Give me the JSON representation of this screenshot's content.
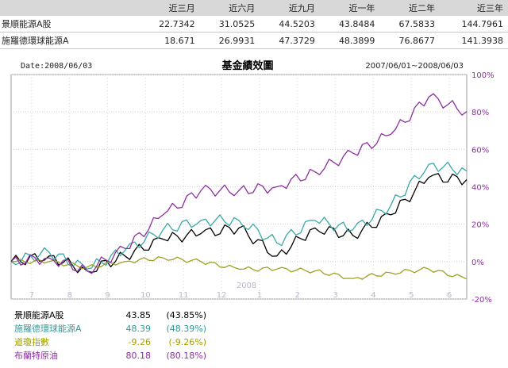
{
  "table": {
    "headers": [
      "",
      "近三月",
      "近六月",
      "近九月",
      "近一年",
      "近二年",
      "近三年"
    ],
    "rows": [
      {
        "name": "景順能源A股",
        "values": [
          "22.7342",
          "31.0525",
          "44.5203",
          "43.8484",
          "67.5833",
          "144.7961"
        ]
      },
      {
        "name": "施羅德環球能源A",
        "values": [
          "18.671",
          "26.9931",
          "47.3729",
          "48.3899",
          "76.8677",
          "141.3938"
        ]
      }
    ]
  },
  "chart_data": {
    "type": "line",
    "title": "基金績效圖",
    "date_label": "Date:2008/06/03",
    "range_label": "2007/06/01~2008/06/03",
    "x_tick_labels": [
      "7",
      "8",
      "9",
      "10",
      "11",
      "12",
      "1",
      "2",
      "3",
      "4",
      "5",
      "6"
    ],
    "x_year_label": "2008",
    "y_tick_labels": [
      "100%",
      "80%",
      "60%",
      "40%",
      "20%",
      "0%",
      "-20%"
    ],
    "ylim": [
      -20,
      100
    ],
    "y_axis_position": "right",
    "grid": true,
    "x": [
      "2007-06",
      "2007-07",
      "2007-08",
      "2007-09",
      "2007-10",
      "2007-11",
      "2007-12",
      "2008-01",
      "2008-02",
      "2008-03",
      "2008-04",
      "2008-05",
      "2008-06"
    ],
    "series": [
      {
        "name": "景順能源A股",
        "color": "#000000",
        "values": [
          0,
          3,
          -5,
          3,
          12,
          15,
          18,
          3,
          18,
          14,
          25,
          45,
          43.85
        ]
      },
      {
        "name": "施羅德環球能源A",
        "color": "#3aa8a8",
        "values": [
          0,
          5,
          -4,
          6,
          17,
          22,
          22,
          10,
          22,
          17,
          30,
          52,
          48.39
        ]
      },
      {
        "name": "道瓊指數",
        "color": "#a0a020",
        "values": [
          0,
          0,
          -3,
          0,
          2,
          0,
          -4,
          -4,
          -5,
          -9,
          -6,
          -4,
          -9.26
        ]
      },
      {
        "name": "布蘭特原油",
        "color": "#8e2ea0",
        "values": [
          0,
          2,
          -5,
          7,
          25,
          38,
          38,
          40,
          48,
          58,
          68,
          88,
          80.18
        ]
      }
    ]
  },
  "legend": [
    {
      "name": "景順能源A股",
      "value": "43.85",
      "pct": "(43.85%)",
      "color": "#000000"
    },
    {
      "name": "施羅德環球能源A",
      "value": "48.39",
      "pct": "(48.39%)",
      "color": "#2f9a9a"
    },
    {
      "name": "道瓊指數",
      "value": "-9.26",
      "pct": "(-9.26%)",
      "color": "#a0a000"
    },
    {
      "name": "布蘭特原油",
      "value": "80.18",
      "pct": "(80.18%)",
      "color": "#8e2ea0"
    }
  ]
}
